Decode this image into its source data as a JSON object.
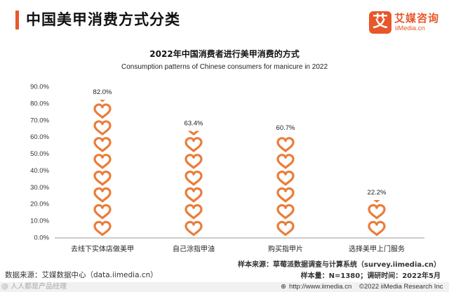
{
  "header": {
    "title": "中国美甲消费方式分类",
    "logo_mark": "艾",
    "logo_cn": "艾媒咨询",
    "logo_en": "iiMedia.cn"
  },
  "colors": {
    "accent": "#e8572a",
    "heart": "#ea7d3a"
  },
  "chart_data": {
    "type": "bar",
    "style": "pictograph-hearts",
    "title": "2022年中国消费者进行美甲消费的方式",
    "subtitle": "Consumption patterns of Chinese consumers for manicure in 2022",
    "categories": [
      "去线下实体店做美甲",
      "自己涂指甲油",
      "购买指甲片",
      "选择美甲上门服务"
    ],
    "values": [
      82.0,
      63.4,
      60.7,
      22.2
    ],
    "value_labels": [
      "82.0%",
      "63.4%",
      "60.7%",
      "22.2%"
    ],
    "ylim": [
      0,
      90
    ],
    "yticks": [
      "0.0%",
      "10.0%",
      "20.0%",
      "30.0%",
      "40.0%",
      "50.0%",
      "60.0%",
      "70.0%",
      "80.0%",
      "90.0%"
    ],
    "grid": false,
    "legend": false
  },
  "footer": {
    "source": "数据来源：艾媒数据中心（data.iimedia.cn）",
    "sample_source": "样本来源：草莓派数据调查与计算系统（survey.iimedia.cn）",
    "sample": "样本量：N=1380；调研时间：2022年5月",
    "url": "http://www.iimedia.cn",
    "copyright": "©2022  iiMedia Research  Inc",
    "watermark": "@ 人人都是产品经理"
  }
}
